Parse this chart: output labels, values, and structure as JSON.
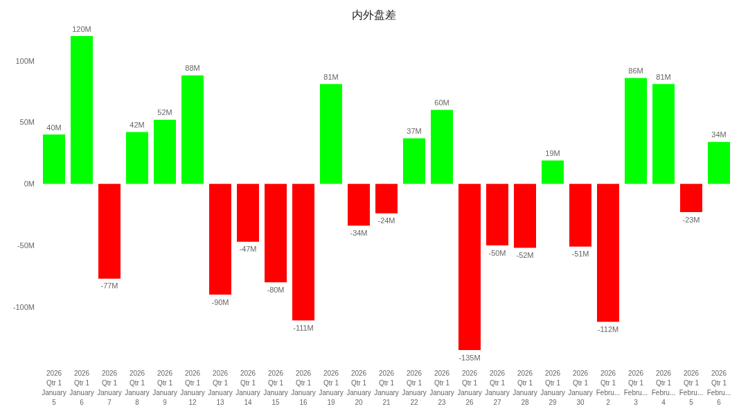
{
  "chart_data": {
    "type": "bar",
    "title": "内外盘差",
    "categories": [
      "2026\nQtr 1\nJanuary\n5",
      "2026\nQtr 1\nJanuary\n6",
      "2026\nQtr 1\nJanuary\n7",
      "2026\nQtr 1\nJanuary\n8",
      "2026\nQtr 1\nJanuary\n9",
      "2026\nQtr 1\nJanuary\n12",
      "2026\nQtr 1\nJanuary\n13",
      "2026\nQtr 1\nJanuary\n14",
      "2026\nQtr 1\nJanuary\n15",
      "2026\nQtr 1\nJanuary\n16",
      "2026\nQtr 1\nJanuary\n19",
      "2026\nQtr 1\nJanuary\n20",
      "2026\nQtr 1\nJanuary\n21",
      "2026\nQtr 1\nJanuary\n22",
      "2026\nQtr 1\nJanuary\n23",
      "2026\nQtr 1\nJanuary\n26",
      "2026\nQtr 1\nJanuary\n27",
      "2026\nQtr 1\nJanuary\n28",
      "2026\nQtr 1\nJanuary\n29",
      "2026\nQtr 1\nJanuary\n30",
      "2026\nQtr 1\nFebru...\n2",
      "2026\nQtr 1\nFebru...\n3",
      "2026\nQtr 1\nFebru...\n4",
      "2026\nQtr 1\nFebru...\n5",
      "2026\nQtr 1\nFebru...\n6"
    ],
    "values": [
      40,
      120,
      -77,
      42,
      52,
      88,
      -90,
      -47,
      -80,
      -111,
      81,
      -34,
      -24,
      37,
      60,
      -135,
      -50,
      -52,
      19,
      -51,
      -112,
      86,
      81,
      -23,
      34
    ],
    "value_labels": [
      "40M",
      "120M",
      "-77M",
      "42M",
      "52M",
      "88M",
      "-90M",
      "-47M",
      "-80M",
      "-111M",
      "81M",
      "-34M",
      "-24M",
      "37M",
      "60M",
      "-135M",
      "-50M",
      "-52M",
      "19M",
      "-51M",
      "-112M",
      "86M",
      "81M",
      "-23M",
      "34M"
    ],
    "colors": [
      "#00ff00",
      "#00ff00",
      "#ff0000",
      "#00ff00",
      "#00ff00",
      "#00ff00",
      "#ff0000",
      "#ff0000",
      "#ff0000",
      "#ff0000",
      "#00ff00",
      "#ff0000",
      "#ff0000",
      "#00ff00",
      "#00ff00",
      "#ff0000",
      "#ff0000",
      "#ff0000",
      "#00ff00",
      "#ff0000",
      "#ff0000",
      "#00ff00",
      "#00ff00",
      "#ff0000",
      "#00ff00"
    ],
    "ylim": [
      -135,
      120
    ],
    "yticks": [
      {
        "value": -100,
        "label": "-100M"
      },
      {
        "value": -50,
        "label": "-50M"
      },
      {
        "value": 0,
        "label": "0M"
      },
      {
        "value": 50,
        "label": "50M"
      },
      {
        "value": 100,
        "label": "100M"
      }
    ],
    "grid": false
  }
}
